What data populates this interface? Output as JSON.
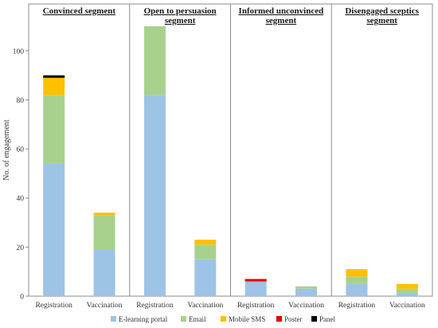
{
  "chart_data": {
    "type": "bar",
    "stacked": true,
    "ylabel": "No. of engagement",
    "ylim": [
      0,
      110
    ],
    "yticks": [
      0,
      20,
      40,
      60,
      80,
      100
    ],
    "grid": false,
    "legend_position": "bottom",
    "categories": [
      "Registration",
      "Vaccination"
    ],
    "panels": [
      {
        "title_lines": [
          "Convinced segment"
        ],
        "stacks": [
          {
            "category": "Registration",
            "values": [
              54,
              28,
              7,
              0,
              1
            ]
          },
          {
            "category": "Vaccination",
            "values": [
              19,
              14,
              1,
              0,
              0
            ]
          }
        ]
      },
      {
        "title_lines": [
          "Open to persuasion",
          "segment"
        ],
        "stacks": [
          {
            "category": "Registration",
            "values": [
              82,
              28,
              0,
              0,
              0
            ]
          },
          {
            "category": "Vaccination",
            "values": [
              15,
              6,
              2,
              0,
              0
            ]
          }
        ]
      },
      {
        "title_lines": [
          "Informed unconvinced",
          "segment"
        ],
        "stacks": [
          {
            "category": "Registration",
            "values": [
              6,
              0,
              0,
              1,
              0
            ]
          },
          {
            "category": "Vaccination",
            "values": [
              3,
              1,
              0,
              0,
              0
            ]
          }
        ]
      },
      {
        "title_lines": [
          "Disengaged sceptics",
          "segment"
        ],
        "stacks": [
          {
            "category": "Registration",
            "values": [
              5,
              3,
              3,
              0,
              0
            ]
          },
          {
            "category": "Vaccination",
            "values": [
              1,
              2,
              2,
              0,
              0
            ]
          }
        ]
      }
    ],
    "series": [
      {
        "name": "E-learning portal",
        "color": "#9dc3e6"
      },
      {
        "name": "Email",
        "color": "#a9d18e"
      },
      {
        "name": "Mobile SMS",
        "color": "#ffc000"
      },
      {
        "name": "Poster",
        "color": "#e00000"
      },
      {
        "name": "Panel",
        "color": "#000000"
      }
    ]
  }
}
